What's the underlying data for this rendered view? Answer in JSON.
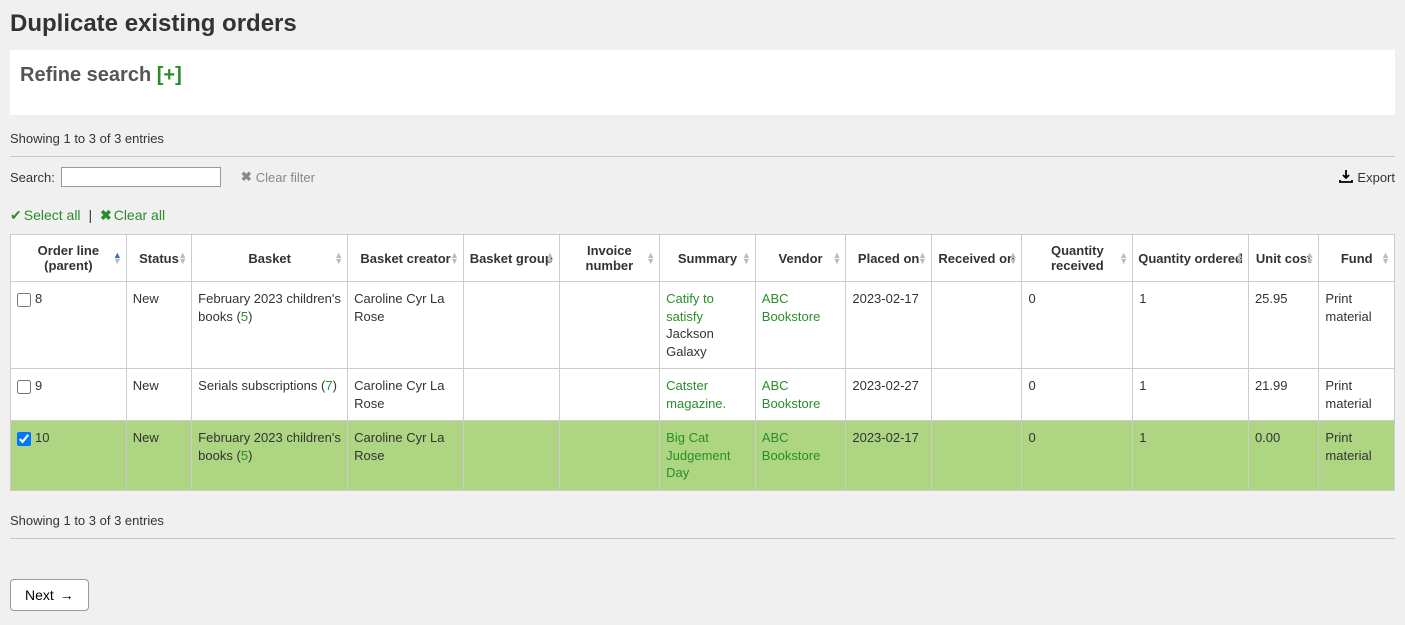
{
  "page_title": "Duplicate existing orders",
  "refine": {
    "label": "Refine search ",
    "expand": "[+]"
  },
  "entries_text_top": "Showing 1 to 3 of 3 entries",
  "entries_text_bottom": "Showing 1 to 3 of 3 entries",
  "search_label": "Search:",
  "search_value": "",
  "clear_filter_label": "Clear filter",
  "export_label": "Export",
  "select_all_label": "Select all",
  "clear_all_label": "Clear all",
  "next_label": "Next",
  "columns": [
    "Order line (parent)",
    "Status",
    "Basket",
    "Basket creator",
    "Basket group",
    "Invoice number",
    "Summary",
    "Vendor",
    "Placed on",
    "Received on",
    "Quantity received",
    "Quantity ordered",
    "Unit cost",
    "Fund"
  ],
  "rows": [
    {
      "checked": false,
      "order_line": "8",
      "status": "New",
      "basket_name": "February 2023 children's books",
      "basket_num": "5",
      "creator": "Caroline Cyr La Rose",
      "basket_group": "",
      "invoice": "",
      "summary_title": "Catify to satisfy",
      "summary_author": "Jackson Galaxy",
      "vendor": "ABC Bookstore",
      "placed_on": "2023-02-17",
      "received_on": "",
      "qty_received": "0",
      "qty_ordered": "1",
      "unit_cost": "25.95",
      "fund": "Print material"
    },
    {
      "checked": false,
      "order_line": "9",
      "status": "New",
      "basket_name": "Serials subscriptions",
      "basket_num": "7",
      "creator": "Caroline Cyr La Rose",
      "basket_group": "",
      "invoice": "",
      "summary_title": "Catster magazine.",
      "summary_author": "",
      "vendor": "ABC Bookstore",
      "placed_on": "2023-02-27",
      "received_on": "",
      "qty_received": "0",
      "qty_ordered": "1",
      "unit_cost": "21.99",
      "fund": "Print material"
    },
    {
      "checked": true,
      "order_line": "10",
      "status": "New",
      "basket_name": "February 2023 children's books",
      "basket_num": "5",
      "creator": "Caroline Cyr La Rose",
      "basket_group": "",
      "invoice": "",
      "summary_title": "Big Cat Judgement Day",
      "summary_author": "",
      "vendor": "ABC Bookstore",
      "placed_on": "2023-02-17",
      "received_on": "",
      "qty_received": "0",
      "qty_ordered": "1",
      "unit_cost": "0.00",
      "fund": "Print material"
    }
  ],
  "colors": {
    "link_green": "#2a8d2a",
    "selected_bg": "#aed581",
    "page_bg": "#f0f0f0",
    "muted": "#888888",
    "sort_active": "#2e6fcf"
  }
}
